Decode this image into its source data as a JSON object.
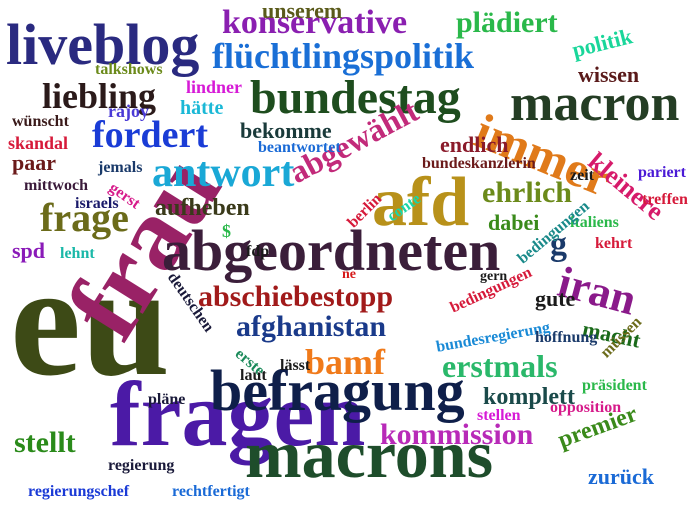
{
  "words": [
    {
      "id": "eu",
      "text": "eu",
      "color": "#3d4a16"
    },
    {
      "id": "frau",
      "text": "frau",
      "color": "#992266"
    },
    {
      "id": "fragen",
      "text": "fragen",
      "color": "#4b1aa6"
    },
    {
      "id": "macrons",
      "text": "macrons",
      "color": "#1e4d2b"
    },
    {
      "id": "befragung",
      "text": "befragung",
      "color": "#0f1f4a"
    },
    {
      "id": "abgeordneten",
      "text": "abgeordneten",
      "color": "#3b1e3a"
    },
    {
      "id": "afd",
      "text": "afd",
      "color": "#b8911a"
    },
    {
      "id": "liveblog",
      "text": "liveblog",
      "color": "#2a2a80"
    },
    {
      "id": "bundestag",
      "text": "bundestag",
      "color": "#1e4d1e"
    },
    {
      "id": "macron",
      "text": "macron",
      "color": "#243d24"
    },
    {
      "id": "immer",
      "text": "immer",
      "color": "#e07a1a"
    },
    {
      "id": "fluechtlingspolitik",
      "text": "flüchtlingspolitik",
      "color": "#1a6fd6"
    },
    {
      "id": "konservative",
      "text": "konservative",
      "color": "#8a1fb0"
    },
    {
      "id": "antwort",
      "text": "antwort",
      "color": "#1aa8d6"
    },
    {
      "id": "frage",
      "text": "frage",
      "color": "#6b6b1a"
    },
    {
      "id": "fordert",
      "text": "fordert",
      "color": "#1a3cd6"
    },
    {
      "id": "liebling",
      "text": "liebling",
      "color": "#2b1a1a"
    },
    {
      "id": "abgewaehlt",
      "text": "abgewählt",
      "color": "#c22a7a"
    },
    {
      "id": "iran",
      "text": "iran",
      "color": "#8a1a8a"
    },
    {
      "id": "abschiebestopp",
      "text": "abschiebestopp",
      "color": "#a11a1a"
    },
    {
      "id": "afghanistan",
      "text": "afghanistan",
      "color": "#1a3a8a"
    },
    {
      "id": "bamf",
      "text": "bamf",
      "color": "#f07a1a"
    },
    {
      "id": "erstmals",
      "text": "erstmals",
      "color": "#2ab86a"
    },
    {
      "id": "kommission",
      "text": "kommission",
      "color": "#b82ab8"
    },
    {
      "id": "stellt",
      "text": "stellt",
      "color": "#2a8a1a"
    },
    {
      "id": "ehrlich",
      "text": "ehrlich",
      "color": "#6b8a1a"
    },
    {
      "id": "plaediert",
      "text": "plädiert",
      "color": "#2ab84a"
    },
    {
      "id": "unserem",
      "text": "unserem",
      "color": "#5a5a1a"
    },
    {
      "id": "wissen",
      "text": "wissen",
      "color": "#5a1a1a"
    },
    {
      "id": "politik",
      "text": "politik",
      "color": "#1ad69a"
    },
    {
      "id": "kleinere",
      "text": "kleinere",
      "color": "#d61a6a"
    },
    {
      "id": "komplett",
      "text": "komplett",
      "color": "#1a4a4a"
    },
    {
      "id": "premier",
      "text": "premier",
      "color": "#3a8a1a"
    },
    {
      "id": "zurueck",
      "text": "zurück",
      "color": "#1a6ad6"
    },
    {
      "id": "g",
      "text": "g",
      "color": "#1a3a6a"
    },
    {
      "id": "aufheben",
      "text": "aufheben",
      "color": "#3a3a1a"
    },
    {
      "id": "endlich",
      "text": "endlich",
      "color": "#8a1a2a"
    },
    {
      "id": "bekomme",
      "text": "bekomme",
      "color": "#1a3a3a"
    },
    {
      "id": "haette",
      "text": "hätte",
      "color": "#1ab8d6"
    },
    {
      "id": "lindner",
      "text": "lindner",
      "color": "#d61ad6"
    },
    {
      "id": "talkshows",
      "text": "talkshows",
      "color": "#6b8a1a"
    },
    {
      "id": "rajoy",
      "text": "rajoy",
      "color": "#4a3ad6"
    },
    {
      "id": "wuenscht",
      "text": "wünscht",
      "color": "#3a1a1a"
    },
    {
      "id": "skandal",
      "text": "skandal",
      "color": "#d61a3a"
    },
    {
      "id": "paar",
      "text": "paar",
      "color": "#6b1a1a"
    },
    {
      "id": "jemals",
      "text": "jemals",
      "color": "#1a3a6a"
    },
    {
      "id": "mittwoch",
      "text": "mittwoch",
      "color": "#3a1a3a"
    },
    {
      "id": "gerst",
      "text": "gerst",
      "color": "#d61a8a"
    },
    {
      "id": "israels",
      "text": "israels",
      "color": "#1a1a6a"
    },
    {
      "id": "beantwortet",
      "text": "beantwortet",
      "color": "#1a6ad6"
    },
    {
      "id": "bundeskanzlerin",
      "text": "bundeskanzlerin",
      "color": "#6b1a1a"
    },
    {
      "id": "zeit",
      "text": "zeit",
      "color": "#1a1a1a"
    },
    {
      "id": "pariert",
      "text": "pariert",
      "color": "#4a1ad6"
    },
    {
      "id": "treffen",
      "text": "treffen",
      "color": "#d61a3a"
    },
    {
      "id": "italiens",
      "text": "italiens",
      "color": "#2ab84a"
    },
    {
      "id": "kehrt",
      "text": "kehrt",
      "color": "#d61a3a"
    },
    {
      "id": "dabei",
      "text": "dabei",
      "color": "#3a8a1a"
    },
    {
      "id": "spd",
      "text": "spd",
      "color": "#8a1ab8"
    },
    {
      "id": "lehnt",
      "text": "lehnt",
      "color": "#1ab8a8"
    },
    {
      "id": "dollar",
      "text": "$",
      "color": "#2ab84a"
    },
    {
      "id": "fdp",
      "text": "fdp",
      "color": "#1a1a1a"
    },
    {
      "id": "berlin",
      "text": "berlin",
      "color": "#d61a3a"
    },
    {
      "id": "conte",
      "text": "conte",
      "color": "#1ad6a8"
    },
    {
      "id": "gern",
      "text": "gern",
      "color": "#1a1a1a"
    },
    {
      "id": "bedingungen",
      "text": "bedingungen",
      "color": "#1a8a8a"
    },
    {
      "id": "ne",
      "text": "ne",
      "color": "#d61a1a"
    },
    {
      "id": "deutschen",
      "text": "deutschen",
      "color": "#1a1a3a"
    },
    {
      "id": "gute",
      "text": "gute",
      "color": "#1a1a1a"
    },
    {
      "id": "macht",
      "text": "macht",
      "color": "#1a6a1a"
    },
    {
      "id": "bedingungen2",
      "text": "bedingungen",
      "color": "#d61a3a"
    },
    {
      "id": "bundesregierung",
      "text": "bundesregierung",
      "color": "#1a8ad6"
    },
    {
      "id": "hoffnung",
      "text": "hoffnung",
      "color": "#1a3a6a"
    },
    {
      "id": "erste",
      "text": "erste",
      "color": "#1a8a5a"
    },
    {
      "id": "laesst",
      "text": "lässt",
      "color": "#1a1a1a"
    },
    {
      "id": "laut",
      "text": "laut",
      "color": "#1a1a1a"
    },
    {
      "id": "muessen",
      "text": "müssen",
      "color": "#6b6b1a"
    },
    {
      "id": "praesident",
      "text": "präsident",
      "color": "#2ab84a"
    },
    {
      "id": "plaene",
      "text": "pläne",
      "color": "#1a1a3a"
    },
    {
      "id": "stellen",
      "text": "stellen",
      "color": "#d61ad6"
    },
    {
      "id": "opposition",
      "text": "opposition",
      "color": "#d61a8a"
    },
    {
      "id": "regierung",
      "text": "regierung",
      "color": "#1a1a3a"
    },
    {
      "id": "regierungschef",
      "text": "regierungschef",
      "color": "#1a3ad6"
    },
    {
      "id": "rechtfertigt",
      "text": "rechtfertigt",
      "color": "#1a6ad6"
    }
  ]
}
